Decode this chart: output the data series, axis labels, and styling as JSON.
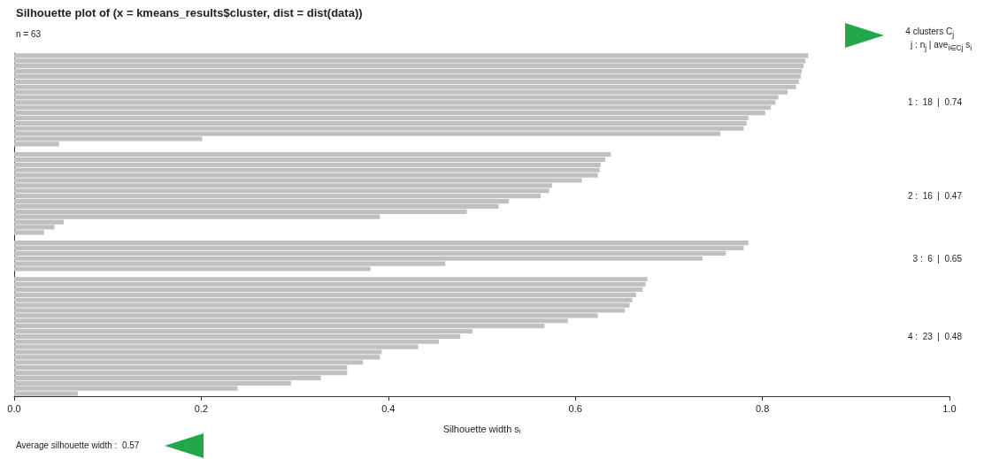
{
  "chart_data": {
    "type": "bar",
    "orientation": "horizontal",
    "title": "Silhouette plot of (x = kmeans_results$cluster, dist = dist(data))",
    "xlabel": "Silhouette width s$_{i}$",
    "annotations": [
      "n = 63",
      "4 clusters  C$_{j}$",
      "j :  n$_{j}$ | ave$_{i∈Cj}$ s$_{i}$",
      "1 :  18  |  0.74",
      "2 :  16  |  0.47",
      "3 :  6  |  0.65",
      "4 :  23  |  0.48",
      "Average silhouette width :  0.57"
    ],
    "categories": [
      null,
      null,
      null,
      null,
      null,
      null,
      null,
      null,
      null,
      null,
      null,
      null,
      null,
      null,
      null,
      null,
      null,
      null,
      null,
      null,
      null,
      null,
      null,
      null,
      null,
      null,
      null,
      null,
      null,
      null,
      null,
      null,
      null,
      null,
      null,
      null,
      null,
      null,
      null,
      null,
      null,
      null,
      null,
      null,
      null,
      null,
      null,
      null,
      null,
      null,
      null,
      null,
      null,
      null,
      null,
      null,
      null,
      null,
      null,
      null,
      null,
      null,
      null,
      null,
      null,
      null
    ],
    "values": [
      0.849,
      0.846,
      0.844,
      0.842,
      0.841,
      0.839,
      0.836,
      0.827,
      0.817,
      0.814,
      0.809,
      0.803,
      0.785,
      0.783,
      0.78,
      0.755,
      0.201,
      0.048,
      null,
      0.638,
      0.632,
      0.627,
      0.626,
      0.624,
      0.607,
      0.575,
      0.572,
      0.563,
      0.529,
      0.518,
      0.484,
      0.391,
      0.053,
      0.043,
      0.032,
      null,
      0.785,
      0.78,
      0.761,
      0.736,
      0.461,
      0.381,
      null,
      0.677,
      0.675,
      0.672,
      0.665,
      0.661,
      0.658,
      0.653,
      0.624,
      0.592,
      0.567,
      0.49,
      0.477,
      0.454,
      0.432,
      0.393,
      0.391,
      0.373,
      0.356,
      0.356,
      0.328,
      0.296,
      0.239,
      0.068
    ],
    "color": "#c0c0c0",
    "xlim": [
      0,
      1
    ],
    "xticks": [
      {
        "value": 0,
        "label": "0.0"
      },
      {
        "value": 0.2,
        "label": "0.2"
      },
      {
        "value": 0.4,
        "label": "0.4"
      },
      {
        "value": 0.6,
        "label": "0.6"
      },
      {
        "value": 0.8,
        "label": "0.8"
      },
      {
        "value": 1,
        "label": "1.0"
      }
    ],
    "grid": false,
    "tick_labels": "x"
  }
}
